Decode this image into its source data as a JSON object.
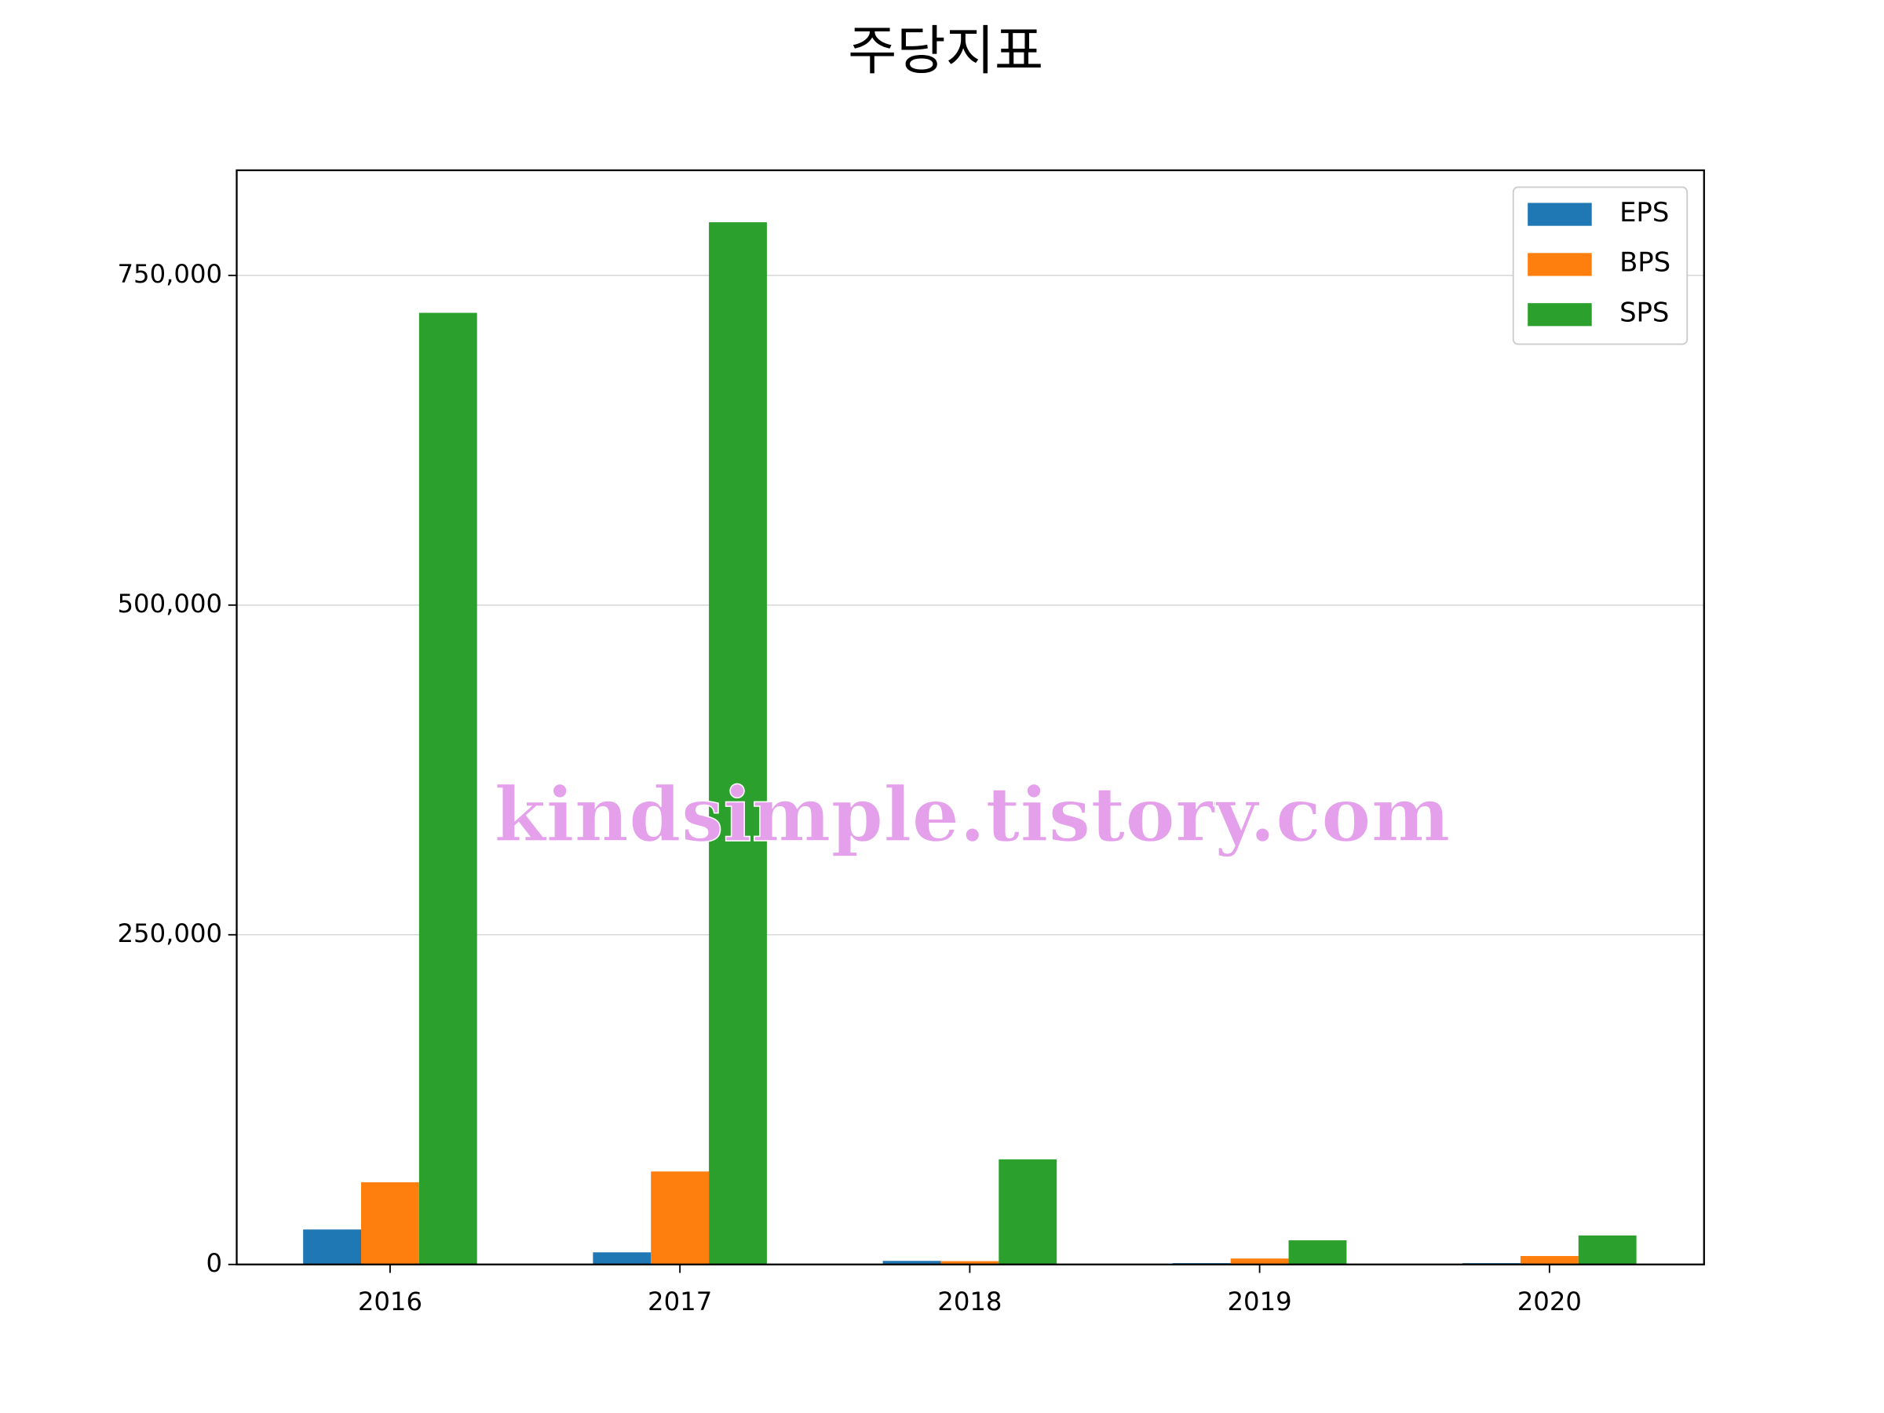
{
  "chart_data": {
    "type": "bar",
    "title": "주당지표",
    "watermark": "kindsimple.tistory.com",
    "categories": [
      "2016",
      "2017",
      "2018",
      "2019",
      "2020"
    ],
    "series": [
      {
        "name": "EPS",
        "color": "#1f77b4",
        "values": [
          26500,
          9200,
          2700,
          1000,
          1000
        ]
      },
      {
        "name": "BPS",
        "color": "#ff7f0e",
        "values": [
          62300,
          70500,
          2500,
          4500,
          6400
        ]
      },
      {
        "name": "SPS",
        "color": "#2ca02c",
        "values": [
          721600,
          790300,
          79700,
          18300,
          22000
        ]
      }
    ],
    "ylim": [
      0,
      829700
    ],
    "yticks": [
      0,
      {
        "value": 250000,
        "label": "250,000"
      },
      {
        "value": 500000,
        "label": "500,000"
      },
      {
        "value": 750000,
        "label": "750,000"
      }
    ],
    "grid": true,
    "legend": "upper right"
  }
}
